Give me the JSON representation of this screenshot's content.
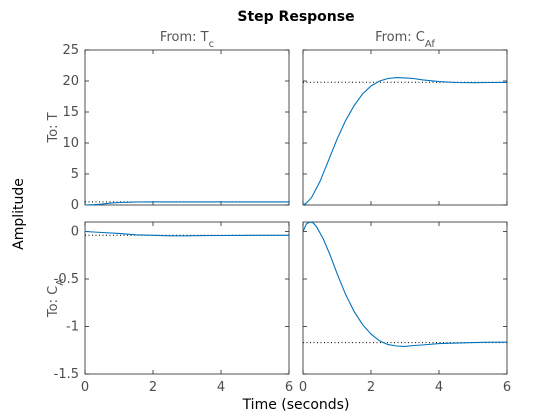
{
  "chart_data": {
    "type": "line",
    "title": "Step Response",
    "xlabel": "Time (seconds)",
    "ylabel": "Amplitude",
    "line_color": "#0072bd",
    "columns": [
      {
        "prefix": "From: T",
        "sub": "c"
      },
      {
        "prefix": "From: C",
        "sub": "Af"
      }
    ],
    "rows": [
      {
        "prefix": "To: T",
        "sub": ""
      },
      {
        "prefix": "To: C",
        "sub": "A"
      }
    ],
    "xlim": [
      0,
      6
    ],
    "xticks": [
      0,
      2,
      4,
      6
    ],
    "row_ylims": [
      [
        0,
        25
      ],
      [
        -1.5,
        0.1
      ]
    ],
    "row_yticks": [
      [
        0,
        5,
        10,
        15,
        20,
        25
      ],
      [
        -1.5,
        -1,
        -0.5,
        0
      ]
    ],
    "row_ytick_labels": [
      [
        "0",
        "5",
        "10",
        "15",
        "20",
        "25"
      ],
      [
        "-1.5",
        "-1",
        "-0.5",
        "0"
      ]
    ],
    "panels": [
      {
        "row": 0,
        "col": 0,
        "steady_state": 0.5,
        "x": [
          0,
          0.25,
          0.5,
          0.75,
          1,
          1.5,
          2,
          3,
          4,
          5,
          6
        ],
        "y": [
          0,
          0.05,
          0.15,
          0.3,
          0.4,
          0.48,
          0.5,
          0.5,
          0.5,
          0.5,
          0.5
        ]
      },
      {
        "row": 0,
        "col": 1,
        "steady_state": 19.8,
        "x": [
          0,
          0.1,
          0.25,
          0.5,
          0.75,
          1,
          1.25,
          1.5,
          1.75,
          2,
          2.25,
          2.5,
          2.75,
          3,
          3.25,
          3.5,
          3.75,
          4,
          4.5,
          5,
          5.5,
          6
        ],
        "y": [
          0,
          0.3,
          1.2,
          3.8,
          7.2,
          10.6,
          13.6,
          16.0,
          17.9,
          19.2,
          20.0,
          20.4,
          20.55,
          20.5,
          20.4,
          20.2,
          20.05,
          19.9,
          19.75,
          19.72,
          19.75,
          19.78
        ]
      },
      {
        "row": 1,
        "col": 0,
        "steady_state": -0.04,
        "x": [
          0,
          0.5,
          1,
          1.5,
          2,
          2.5,
          3,
          3.5,
          4,
          4.5,
          5,
          5.5,
          6
        ],
        "y": [
          0,
          -0.01,
          -0.02,
          -0.035,
          -0.04,
          -0.045,
          -0.045,
          -0.043,
          -0.042,
          -0.041,
          -0.04,
          -0.04,
          -0.04
        ]
      },
      {
        "row": 1,
        "col": 1,
        "steady_state": -1.17,
        "x": [
          0,
          0.1,
          0.2,
          0.3,
          0.4,
          0.6,
          0.8,
          1,
          1.25,
          1.5,
          1.75,
          2,
          2.25,
          2.5,
          2.75,
          3,
          3.25,
          3.5,
          4,
          4.5,
          5,
          5.5,
          6
        ],
        "y": [
          0,
          0.08,
          0.1,
          0.09,
          0.05,
          -0.08,
          -0.25,
          -0.44,
          -0.66,
          -0.84,
          -0.98,
          -1.08,
          -1.15,
          -1.19,
          -1.205,
          -1.21,
          -1.2,
          -1.195,
          -1.18,
          -1.175,
          -1.17,
          -1.165,
          -1.165
        ]
      }
    ]
  }
}
